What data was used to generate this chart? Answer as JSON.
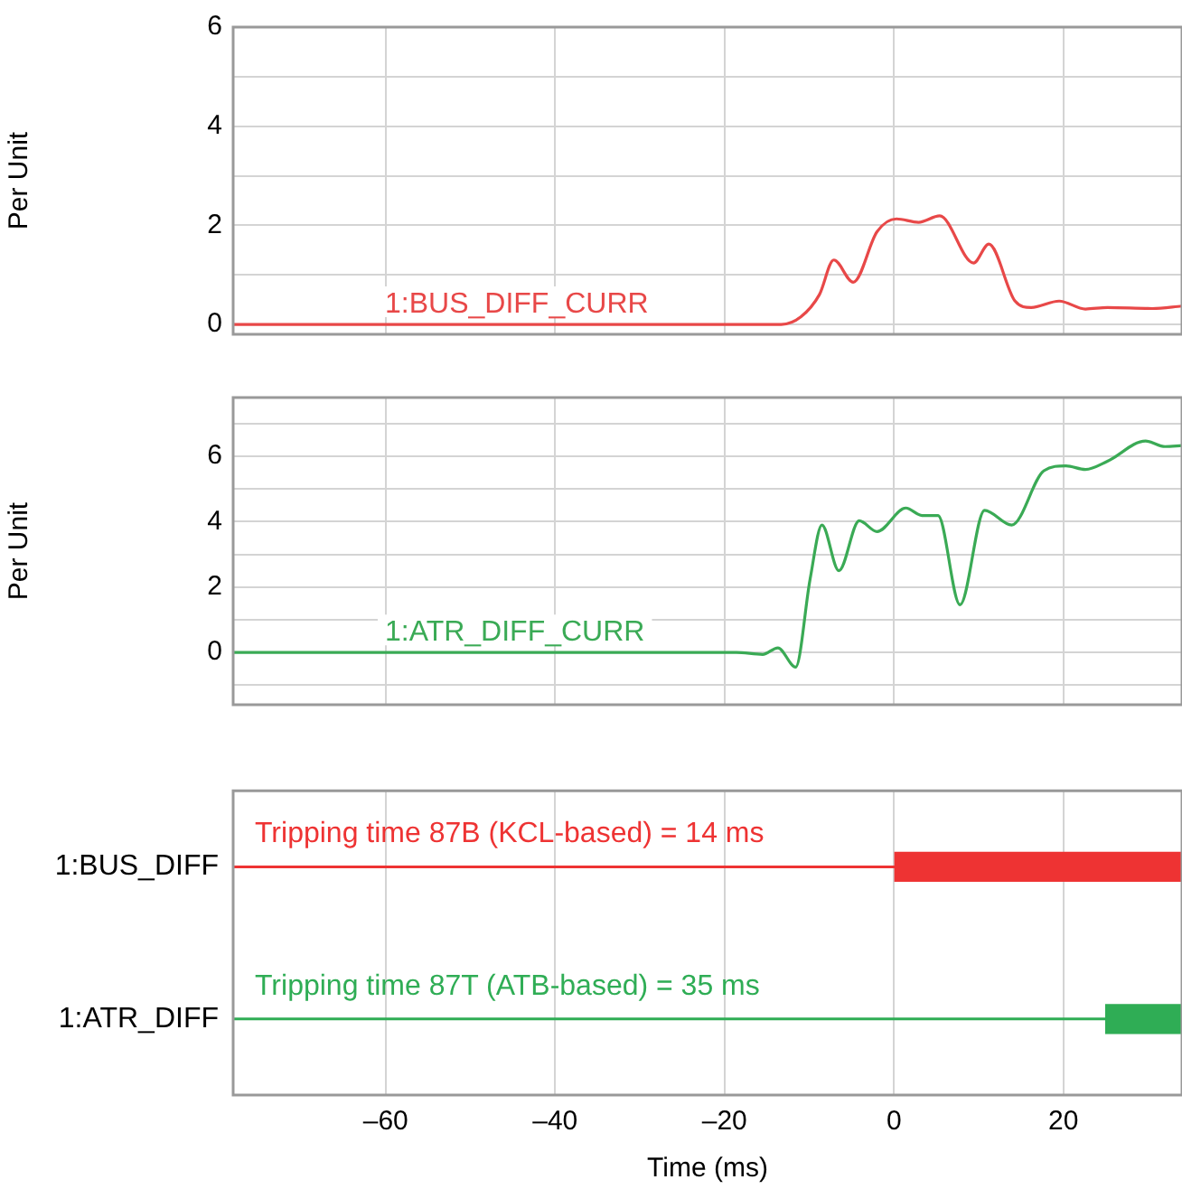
{
  "chart_data": [
    {
      "type": "line",
      "ylabel": "Per Unit",
      "xlim": [
        -78,
        34
      ],
      "ylim": [
        -0.2,
        6
      ],
      "xticks": [
        -60,
        -40,
        -20,
        0,
        20
      ],
      "yticks": [
        0,
        {
          "value": 1,
          "label": null
        },
        2,
        {
          "value": 3,
          "label": null
        },
        4,
        {
          "value": 5,
          "label": null
        },
        6
      ],
      "grid": true,
      "tick_labels": "y",
      "series": [
        {
          "name": "1:BUS_DIFF_CURR",
          "color": "#e84848",
          "x": [
            -78,
            -13.3,
            -11,
            -8.8,
            -7.1,
            -4.8,
            -2,
            0.3,
            2.9,
            5.4,
            9.4,
            11.2,
            14.3,
            16.2,
            19.5,
            22.6,
            25.2,
            30.5,
            34
          ],
          "values": [
            0,
            0,
            0.15,
            0.6,
            1.3,
            0.85,
            1.87,
            2.13,
            2.06,
            2.19,
            1.24,
            1.62,
            0.47,
            0.34,
            0.47,
            0.31,
            0.34,
            0.32,
            0.37
          ]
        }
      ]
    },
    {
      "type": "line",
      "ylabel": "Per Unit",
      "xlim": [
        -78,
        34
      ],
      "ylim": [
        -1.6,
        7.8
      ],
      "xticks": [
        -60,
        -40,
        -20,
        0,
        20
      ],
      "yticks": [
        {
          "value": -1,
          "label": null
        },
        0,
        {
          "value": 1,
          "label": null
        },
        2,
        {
          "value": 3,
          "label": null
        },
        4,
        {
          "value": 5,
          "label": null
        },
        6,
        {
          "value": 7,
          "label": null
        }
      ],
      "grid": true,
      "tick_labels": "y",
      "series": [
        {
          "name": "1:ATR_DIFF_CURR",
          "color": "#3aaa55",
          "x": [
            -78,
            -18.6,
            -15.5,
            -13.7,
            -11.6,
            -9.9,
            -8.5,
            -6.5,
            -4.1,
            -2,
            1.4,
            3.3,
            5.2,
            7.8,
            10.7,
            13.9,
            17.7,
            20.3,
            22.6,
            25.2,
            29.7,
            32,
            34
          ],
          "values": [
            0,
            0,
            -0.06,
            0.14,
            -0.45,
            2.24,
            3.9,
            2.5,
            4.03,
            3.7,
            4.42,
            4.19,
            4.19,
            1.46,
            4.35,
            3.9,
            5.56,
            5.71,
            5.6,
            5.85,
            6.47,
            6.3,
            6.33
          ]
        }
      ]
    },
    {
      "type": "bar",
      "orientation": "horizontal",
      "xlabel": "Time (ms)",
      "xlim": [
        -78,
        34
      ],
      "xticks": [
        {
          "value": -60,
          "label": "–60"
        },
        {
          "value": -40,
          "label": "–40"
        },
        {
          "value": -20,
          "label": "–20"
        },
        0,
        20
      ],
      "grid": "x",
      "ref_lines": [
        {
          "axis": "y",
          "value": "1:BUS_DIFF",
          "color": "#ee3333"
        },
        {
          "axis": "y",
          "value": "1:ATR_DIFF",
          "color": "#2fad55"
        }
      ],
      "categories": [
        "1:BUS_DIFF",
        "1:ATR_DIFF"
      ],
      "base": [
        0,
        25
      ],
      "values": [
        34,
        9
      ],
      "colors": [
        "#ee3333",
        "#2fad55"
      ],
      "annotations": [
        "Tripping time 87B (KCL-based) = 14 ms",
        "Tripping time 87T (ATB-based) = 35 ms"
      ]
    }
  ]
}
